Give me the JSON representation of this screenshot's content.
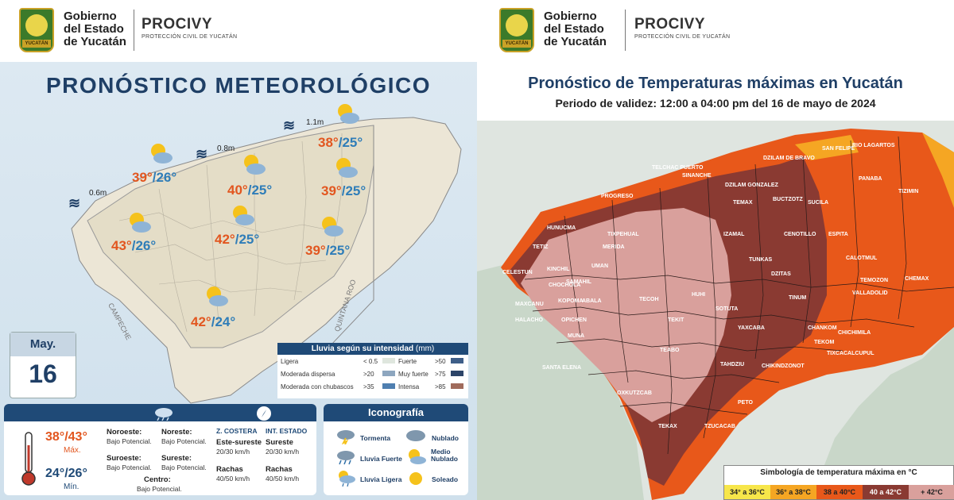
{
  "left": {
    "header": {
      "gov": [
        "Gobierno",
        "del Estado",
        "de Yucatán"
      ],
      "seal_text": "YUCATÁN",
      "org": "PROCIVY",
      "org_sub": "PROTECCIÓN CIVIL DE YUCATÁN"
    },
    "title": "PRONÓSTICO METEOROLÓGICO",
    "waves": [
      {
        "label": "0.6m"
      },
      {
        "label": "0.8m"
      },
      {
        "label": "1.1m"
      }
    ],
    "cities": [
      {
        "max": "39°",
        "min": "/26°"
      },
      {
        "max": "40°",
        "min": "/25°"
      },
      {
        "max": "38°",
        "min": "/25°"
      },
      {
        "max": "39°",
        "min": "/25°"
      },
      {
        "max": "43°",
        "min": "/26°"
      },
      {
        "max": "42°",
        "min": "/25°"
      },
      {
        "max": "39°",
        "min": "/25°"
      },
      {
        "max": "42°",
        "min": "/24°"
      }
    ],
    "state_labels": {
      "campeche": "CAMPECHE",
      "quintana_roo": "QUINTANA ROO"
    },
    "date": {
      "month": "May.",
      "day": "16"
    },
    "rain_legend": {
      "title": "Lluvia según su intensidad",
      "unit": "(mm)",
      "rows": [
        {
          "label": "Ligera",
          "value": "< 0.5",
          "label2": "Fuerte",
          "value2": ">50"
        },
        {
          "label": "Moderada dispersa",
          "value": ">20",
          "label2": "Muy fuerte",
          "value2": ">75"
        },
        {
          "label": "Moderada con chubascos",
          "value": ">35",
          "label2": "Intensa",
          "value2": ">85"
        }
      ],
      "colors": [
        "#dfe6de",
        "#8da6bf",
        "#4f7fb0",
        "#3e5e88",
        "#2c4468",
        "#a06b5c"
      ]
    },
    "info": {
      "max": "38°/43°",
      "max_label": "Máx.",
      "min": "24°/26°",
      "min_label": "Mín.",
      "regions": [
        {
          "name": "Noroeste:",
          "value": "Bajo Potencial."
        },
        {
          "name": "Noreste:",
          "value": "Bajo Potencial."
        },
        {
          "name": "Suroeste:",
          "value": "Bajo Potencial."
        },
        {
          "name": "Sureste:",
          "value": "Bajo Potencial."
        },
        {
          "name": "Centro:",
          "value": "Bajo Potencial."
        }
      ],
      "coast_head": "Z. COSTERA",
      "inland_head": "INT. ESTADO",
      "coast_wind": "Este-sureste",
      "coast_speed": "20/30 km/h",
      "inland_wind": "Sureste",
      "inland_speed": "20/30 km/h",
      "gust_label": "Rachas",
      "coast_gust": "40/50 km/h",
      "inland_gust": "40/50 km/h"
    },
    "iconography": {
      "title": "Iconografía",
      "items": [
        "Tormenta",
        "Nublado",
        "Lluvia Fuerte",
        "Medio Nublado",
        "Lluvia Ligera",
        "Soleado"
      ]
    }
  },
  "right": {
    "header": {
      "gov": [
        "Gobierno",
        "del Estado",
        "de Yucatán"
      ],
      "seal_text": "YUCATÁN",
      "org": "PROCIVY",
      "org_sub": "PROTECCIÓN CIVIL DE YUCATÁN"
    },
    "title": "Pronóstico de Temperaturas máximas en Yucatán",
    "subtitle": "Periodo de validez: 12:00 a 04:00 pm del 16 de mayo de 2024",
    "municipalities": [
      "RIO LAGARTOS",
      "SAN FELIPE",
      "DZILAM DE BRAVO",
      "TELCHAC PUERTO",
      "SINANCHE",
      "TIZIMIN",
      "PANABA",
      "SUCILA",
      "BUCTZOTZ",
      "DZILAM GONZALEZ",
      "TEMAX",
      "PROGRESO",
      "HUNUCMA",
      "CELESTUN",
      "TETIZ",
      "KINCHIL",
      "UMAN",
      "MERIDA",
      "TIXPEHUAL",
      "IZAMAL",
      "CENOTILLO",
      "ESPITA",
      "CALOTMUL",
      "TEMOZON",
      "CHEMAX",
      "VALLADOLID",
      "TUNKAS",
      "DZITAS",
      "TINUM",
      "SAMAHIL",
      "CHOCHOLA",
      "MAXCANU",
      "HALACHO",
      "KOPOMA",
      "ABALA",
      "OPICHEN",
      "TECOH",
      "HUHI",
      "SOTUTA",
      "YAXCABA",
      "CHANKOM",
      "CHICHIMILA",
      "TEKOM",
      "TIXCACALCUPUL",
      "TEKIT",
      "MUNA",
      "TEABO",
      "SANTA ELENA",
      "OXKUTZCAB",
      "TZUCACAB",
      "PETO",
      "TAHDZIU",
      "CHIKINDZONOT",
      "TEKAX"
    ],
    "legend": {
      "title": "Simbología de temperatura máxima en °C",
      "items": [
        {
          "label": "34° a 36°C",
          "color": "#f7e64a"
        },
        {
          "label": "36° a 38°C",
          "color": "#f5a623"
        },
        {
          "label": "38 a 40°C",
          "color": "#e8581a"
        },
        {
          "label": "40 a 42°C",
          "color": "#8a3a32"
        },
        {
          "label": "+ 42°C",
          "color": "#d9a09c"
        }
      ]
    }
  }
}
